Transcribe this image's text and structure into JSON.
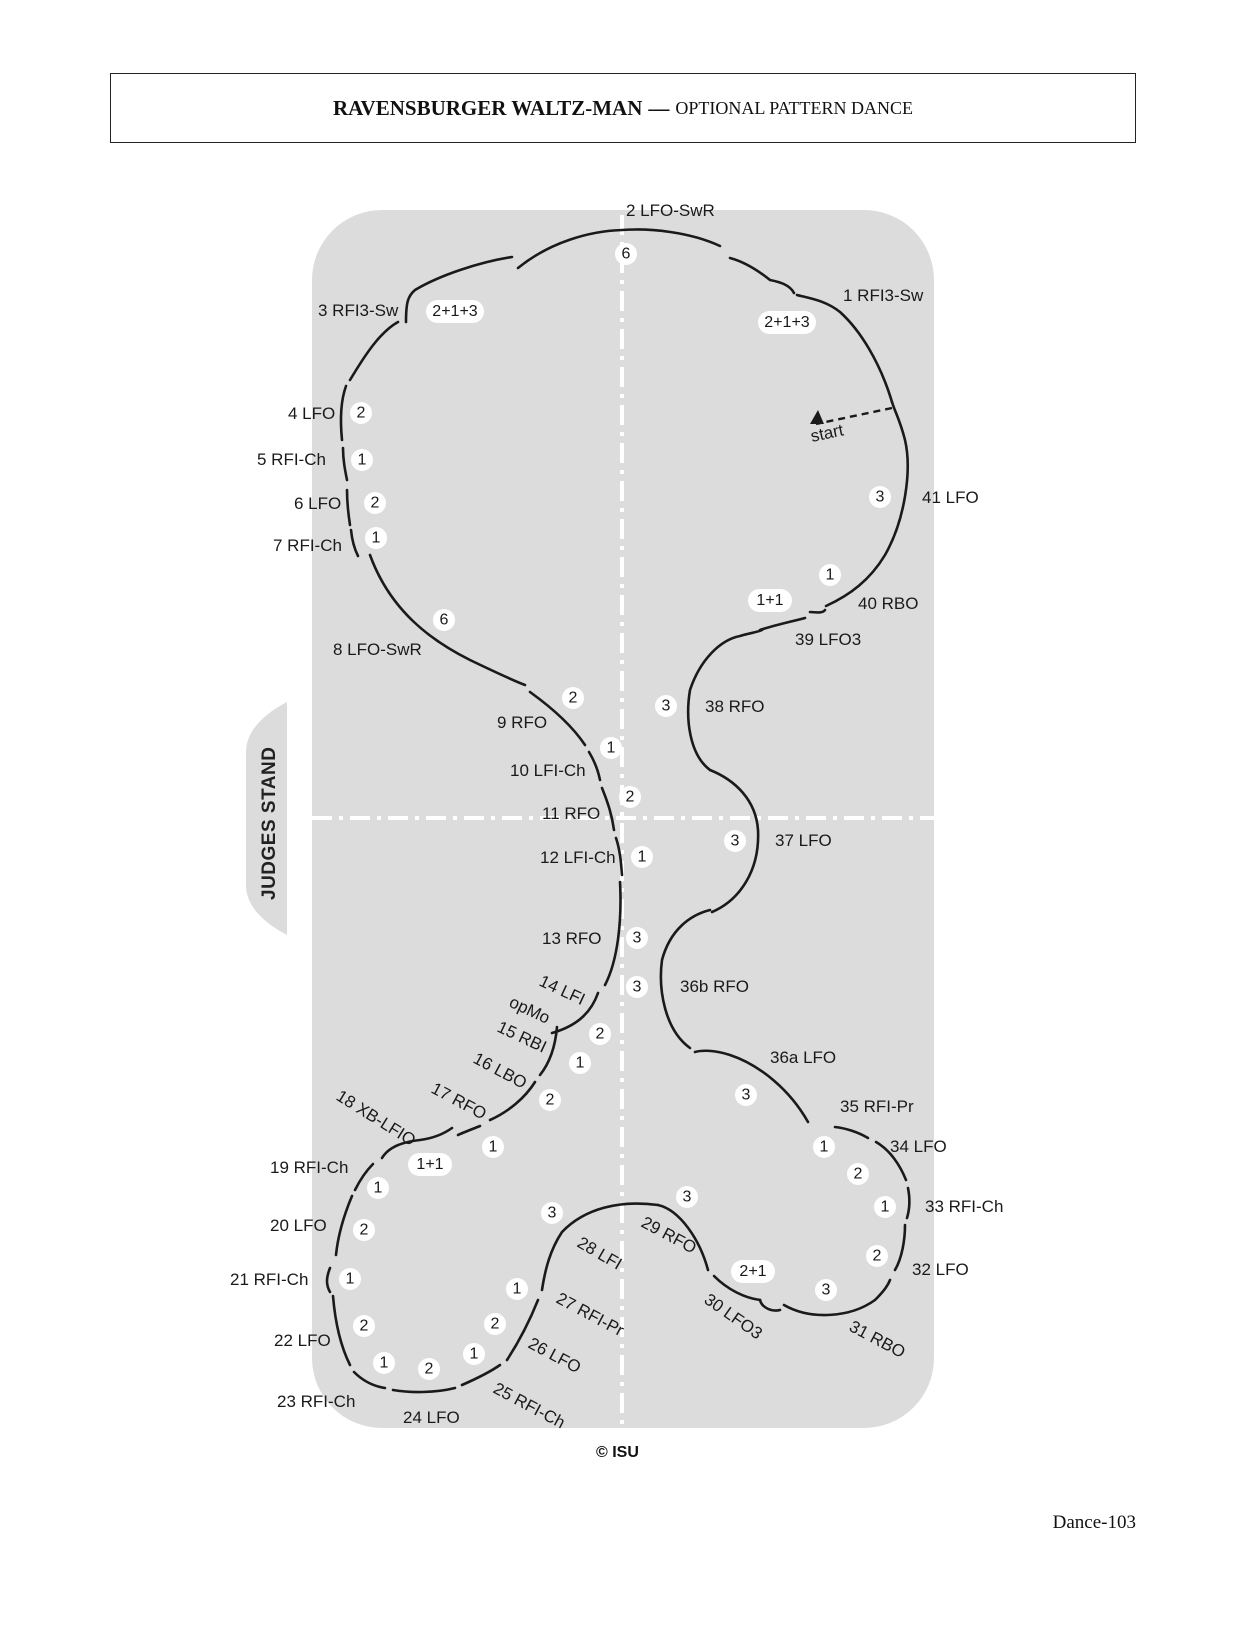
{
  "header": {
    "title_bold": "RAVENSBURGER WALTZ-MAN",
    "separator": "—",
    "title_sub": "OPTIONAL PATTERN DANCE"
  },
  "rink": {
    "judges_stand": "JUDGES STAND",
    "start_label": "start",
    "copyright": "© ISU"
  },
  "steps": [
    {
      "id": "s1",
      "label": "1 RFI3-Sw",
      "count": "2+1+3"
    },
    {
      "id": "s2",
      "label": "2 LFO-SwR",
      "count": "6"
    },
    {
      "id": "s3",
      "label": "3 RFI3-Sw",
      "count": "2+1+3"
    },
    {
      "id": "s4",
      "label": "4 LFO",
      "count": "2"
    },
    {
      "id": "s5",
      "label": "5 RFI-Ch",
      "count": "1"
    },
    {
      "id": "s6",
      "label": "6 LFO",
      "count": "2"
    },
    {
      "id": "s7",
      "label": "7 RFI-Ch",
      "count": "1"
    },
    {
      "id": "s8",
      "label": "8 LFO-SwR",
      "count": "6"
    },
    {
      "id": "s9",
      "label": "9 RFO",
      "count": "2"
    },
    {
      "id": "s10",
      "label": "10 LFI-Ch",
      "count": "1"
    },
    {
      "id": "s11",
      "label": "11 RFO",
      "count": "2"
    },
    {
      "id": "s12",
      "label": "12 LFI-Ch",
      "count": "1"
    },
    {
      "id": "s13",
      "label": "13 RFO",
      "count": "3"
    },
    {
      "id": "s14",
      "label": "14 LFI",
      "count": ""
    },
    {
      "id": "s14b",
      "label": "opMo",
      "count": "2"
    },
    {
      "id": "s15",
      "label": "15 RBI",
      "count": "1"
    },
    {
      "id": "s16",
      "label": "16 LBO",
      "count": "2"
    },
    {
      "id": "s17",
      "label": "17 RFO",
      "count": "1"
    },
    {
      "id": "s18",
      "label": "18 XB-LFIO",
      "count": "1+1"
    },
    {
      "id": "s19",
      "label": "19 RFI-Ch",
      "count": "1"
    },
    {
      "id": "s20",
      "label": "20 LFO",
      "count": "2"
    },
    {
      "id": "s21",
      "label": "21 RFI-Ch",
      "count": "1"
    },
    {
      "id": "s22",
      "label": "22 LFO",
      "count": "2"
    },
    {
      "id": "s23",
      "label": "23 RFI-Ch",
      "count": "1"
    },
    {
      "id": "s24",
      "label": "24 LFO",
      "count": "2"
    },
    {
      "id": "s25",
      "label": "25 RFI-Ch",
      "count": "1"
    },
    {
      "id": "s26",
      "label": "26 LFO",
      "count": "2"
    },
    {
      "id": "s27",
      "label": "27 RFI-Pr",
      "count": "1"
    },
    {
      "id": "s28",
      "label": "28 LFI",
      "count": "3"
    },
    {
      "id": "s29",
      "label": "29 RFO",
      "count": "3"
    },
    {
      "id": "s30",
      "label": "30 LFO3",
      "count": "2+1"
    },
    {
      "id": "s31",
      "label": "31 RBO",
      "count": "3"
    },
    {
      "id": "s32",
      "label": "32 LFO",
      "count": "2"
    },
    {
      "id": "s33",
      "label": "33 RFI-Ch",
      "count": "1"
    },
    {
      "id": "s34",
      "label": "34 LFO",
      "count": "2"
    },
    {
      "id": "s35",
      "label": "35 RFI-Pr",
      "count": "1"
    },
    {
      "id": "s36a",
      "label": "36a LFO",
      "count": "3"
    },
    {
      "id": "s36b",
      "label": "36b RFO",
      "count": "3"
    },
    {
      "id": "s37",
      "label": "37 LFO",
      "count": "3"
    },
    {
      "id": "s38",
      "label": "38 RFO",
      "count": "3"
    },
    {
      "id": "s39",
      "label": "39 LFO3",
      "count": "1+1"
    },
    {
      "id": "s40",
      "label": "40 RBO",
      "count": "1"
    },
    {
      "id": "s41",
      "label": "41 LFO",
      "count": "3"
    }
  ],
  "footer": {
    "page": "Dance-103"
  }
}
